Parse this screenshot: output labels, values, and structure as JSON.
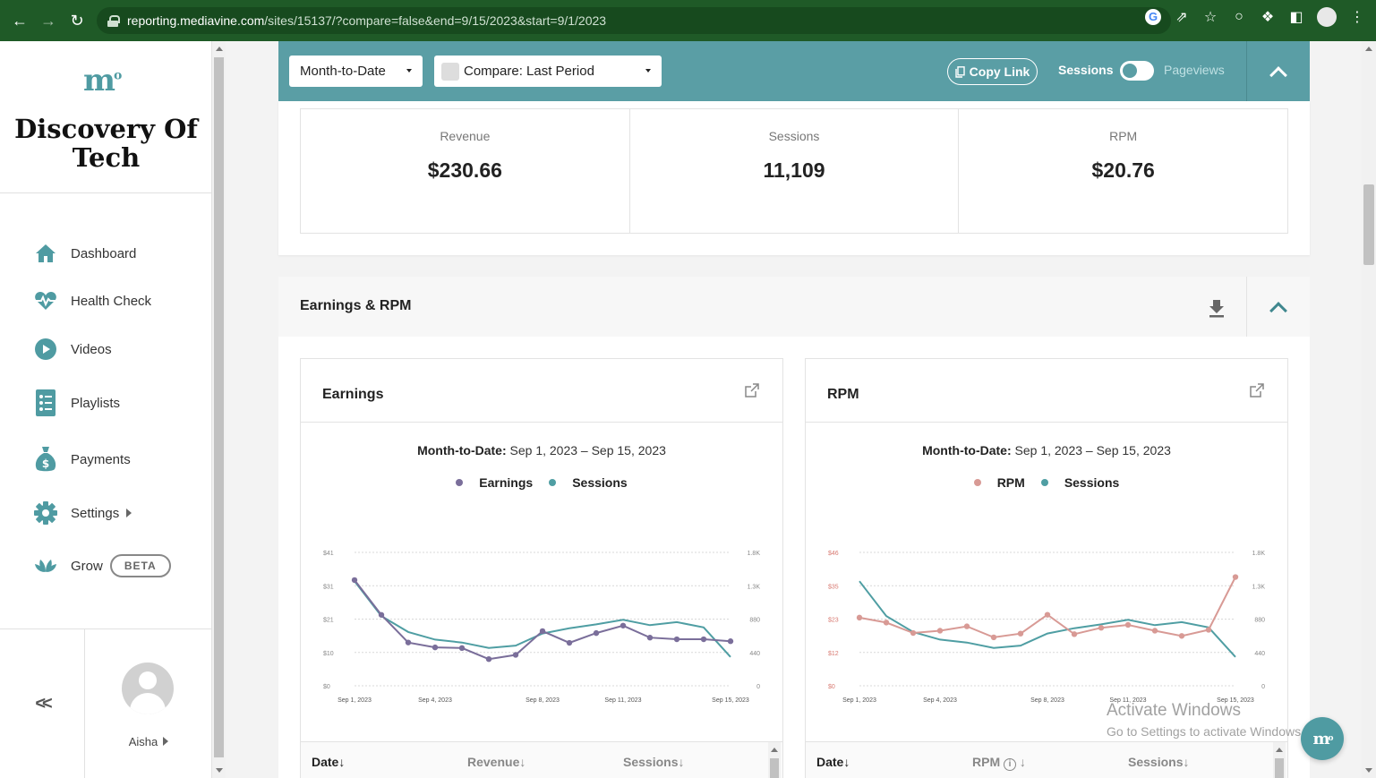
{
  "browser": {
    "url_host": "reporting.mediavine.com",
    "url_path": "/sites/15137/?compare=false&end=9/15/2023&start=9/1/2023"
  },
  "sidebar": {
    "site_name_line1": "Discovery Of",
    "site_name_line2": "Tech",
    "items": [
      {
        "label": "Dashboard",
        "icon": "home-icon"
      },
      {
        "label": "Health Check",
        "icon": "heartbeat-icon"
      },
      {
        "label": "Videos",
        "icon": "play-icon"
      },
      {
        "label": "Playlists",
        "icon": "list-icon"
      },
      {
        "label": "Payments",
        "icon": "money-bag-icon"
      },
      {
        "label": "Settings",
        "icon": "gear-icon"
      },
      {
        "label": "Grow",
        "icon": "grow-leaf-icon",
        "badge": "BETA"
      }
    ],
    "collapse_label": "<<",
    "user_name": "Aisha"
  },
  "toolbar": {
    "period": "Month-to-Date",
    "compare": "Compare: Last Period",
    "copy_link": "Copy Link",
    "toggle_left": "Sessions",
    "toggle_right": "Pageviews"
  },
  "summary": {
    "revenue_label": "Revenue",
    "revenue_value": "$230.66",
    "sessions_label": "Sessions",
    "sessions_value": "11,109",
    "rpm_label": "RPM",
    "rpm_value": "$20.76"
  },
  "section": {
    "title": "Earnings & RPM"
  },
  "earnings_card": {
    "title": "Earnings",
    "range_label": "Month-to-Date:",
    "range_value": "Sep 1, 2023 – Sep 15, 2023",
    "legend_a": "Earnings",
    "legend_b": "Sessions",
    "col1": "Date",
    "col2": "Revenue",
    "col3": "Sessions"
  },
  "rpm_card": {
    "title": "RPM",
    "range_label": "Month-to-Date:",
    "range_value": "Sep 1, 2023 – Sep 15, 2023",
    "legend_a": "RPM",
    "legend_b": "Sessions",
    "col1": "Date",
    "col2": "RPM",
    "col3": "Sessions"
  },
  "colors": {
    "earnings": "#7a6e9a",
    "sessions": "#4f9ea3",
    "rpm": "#d89a95",
    "brand": "#5a9ea5"
  },
  "chart_data": [
    {
      "type": "line",
      "title": "Earnings",
      "x": [
        "Sep 1, 2023",
        "Sep 2, 2023",
        "Sep 3, 2023",
        "Sep 4, 2023",
        "Sep 5, 2023",
        "Sep 6, 2023",
        "Sep 7, 2023",
        "Sep 8, 2023",
        "Sep 9, 2023",
        "Sep 10, 2023",
        "Sep 11, 2023",
        "Sep 12, 2023",
        "Sep 13, 2023",
        "Sep 14, 2023",
        "Sep 15, 2023"
      ],
      "x_tick_labels": [
        "Sep 1, 2023",
        "Sep 4, 2023",
        "Sep 8, 2023",
        "Sep 11, 2023",
        "Sep 15, 2023"
      ],
      "y_left_ticks": [
        "$0",
        "$10",
        "$21",
        "$31",
        "$41"
      ],
      "y_right_ticks": [
        "0",
        "440",
        "880",
        "1.3K",
        "1.8K"
      ],
      "ylim_left": [
        0,
        41
      ],
      "ylim_right": [
        0,
        1760
      ],
      "series": [
        {
          "name": "Earnings",
          "axis": "left",
          "values": [
            32.5,
            21.8,
            13.3,
            11.8,
            11.6,
            8.2,
            9.5,
            16.8,
            13.2,
            16.2,
            18.5,
            14.8,
            14.3,
            14.3,
            13.7
          ]
        },
        {
          "name": "Sessions",
          "axis": "right",
          "values": [
            1380,
            920,
            710,
            610,
            570,
            500,
            530,
            690,
            760,
            810,
            870,
            800,
            840,
            770,
            380
          ]
        }
      ]
    },
    {
      "type": "line",
      "title": "RPM",
      "x": [
        "Sep 1, 2023",
        "Sep 2, 2023",
        "Sep 3, 2023",
        "Sep 4, 2023",
        "Sep 5, 2023",
        "Sep 6, 2023",
        "Sep 7, 2023",
        "Sep 8, 2023",
        "Sep 9, 2023",
        "Sep 10, 2023",
        "Sep 11, 2023",
        "Sep 12, 2023",
        "Sep 13, 2023",
        "Sep 14, 2023",
        "Sep 15, 2023"
      ],
      "x_tick_labels": [
        "Sep 1, 2023",
        "Sep 4, 2023",
        "Sep 8, 2023",
        "Sep 11, 2023",
        "Sep 15, 2023"
      ],
      "y_left_ticks": [
        "$0",
        "$12",
        "$23",
        "$35",
        "$46"
      ],
      "y_right_ticks": [
        "0",
        "440",
        "880",
        "1.3K",
        "1.8K"
      ],
      "ylim_left": [
        0,
        46
      ],
      "ylim_right": [
        0,
        1760
      ],
      "series": [
        {
          "name": "RPM",
          "axis": "left",
          "values": [
            23.5,
            21.8,
            18.2,
            19.0,
            20.5,
            16.7,
            18.0,
            24.5,
            17.8,
            20.0,
            21.0,
            19.0,
            17.2,
            19.3,
            37.5
          ]
        },
        {
          "name": "Sessions",
          "axis": "right",
          "values": [
            1380,
            920,
            710,
            610,
            570,
            500,
            530,
            690,
            760,
            810,
            870,
            800,
            840,
            770,
            380
          ]
        }
      ]
    }
  ]
}
